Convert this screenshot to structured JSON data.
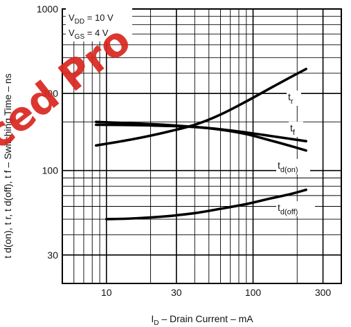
{
  "chart_data": {
    "type": "line",
    "xscale": "log",
    "yscale": "log",
    "xlim": [
      5,
      400
    ],
    "ylim": [
      20,
      1000
    ],
    "grid": true,
    "legend": "inline labels",
    "xlabel": "I",
    "xlabel_sub": "D",
    "xlabel_rest": " – Drain Current – mA",
    "ylabel": "t d(on), t r, t d(off), t f – Switching Time – ns",
    "x_ticks": [
      10,
      30,
      100,
      300
    ],
    "x_tick_labels": [
      "10",
      "30",
      "100",
      "300"
    ],
    "y_ticks": [
      30,
      100,
      300,
      1000
    ],
    "y_tick_labels": [
      "30",
      "100",
      "300",
      "1000"
    ],
    "conditions": {
      "line1_main": "V",
      "line1_sub": "DD",
      "line1_rest": " = 10 V",
      "line2_main": "V",
      "line2_sub": "GS",
      "line2_rest": " = 4 V"
    },
    "series": [
      {
        "name": "t r",
        "label_main": "t",
        "label_sub": "r",
        "x": [
          8.5,
          15,
          25,
          40,
          60,
          90,
          130,
          180,
          230
        ],
        "y": [
          143,
          156,
          172,
          192,
          222,
          268,
          322,
          378,
          425
        ]
      },
      {
        "name": "t f",
        "label_main": "t",
        "label_sub": "f",
        "x": [
          8.5,
          15,
          25,
          40,
          60,
          90,
          130,
          180,
          230
        ],
        "y": [
          200,
          196,
          192,
          186,
          180,
          172,
          164,
          157,
          152
        ]
      },
      {
        "name": "t d(on)",
        "label_main": "t",
        "label_sub": "d(on)",
        "x": [
          8.5,
          15,
          25,
          40,
          60,
          90,
          130,
          180,
          230
        ],
        "y": [
          192,
          191,
          189,
          186,
          179,
          168,
          154,
          142,
          133
        ]
      },
      {
        "name": "t d(off)",
        "label_main": "t",
        "label_sub": "d(off)",
        "x": [
          10,
          15,
          25,
          40,
          60,
          90,
          130,
          180,
          230
        ],
        "y": [
          50,
          50.5,
          52,
          54.5,
          58,
          62,
          67,
          71.5,
          76
        ]
      }
    ]
  },
  "watermark": {
    "text": "ced Pro",
    "color": "#d9271f"
  }
}
